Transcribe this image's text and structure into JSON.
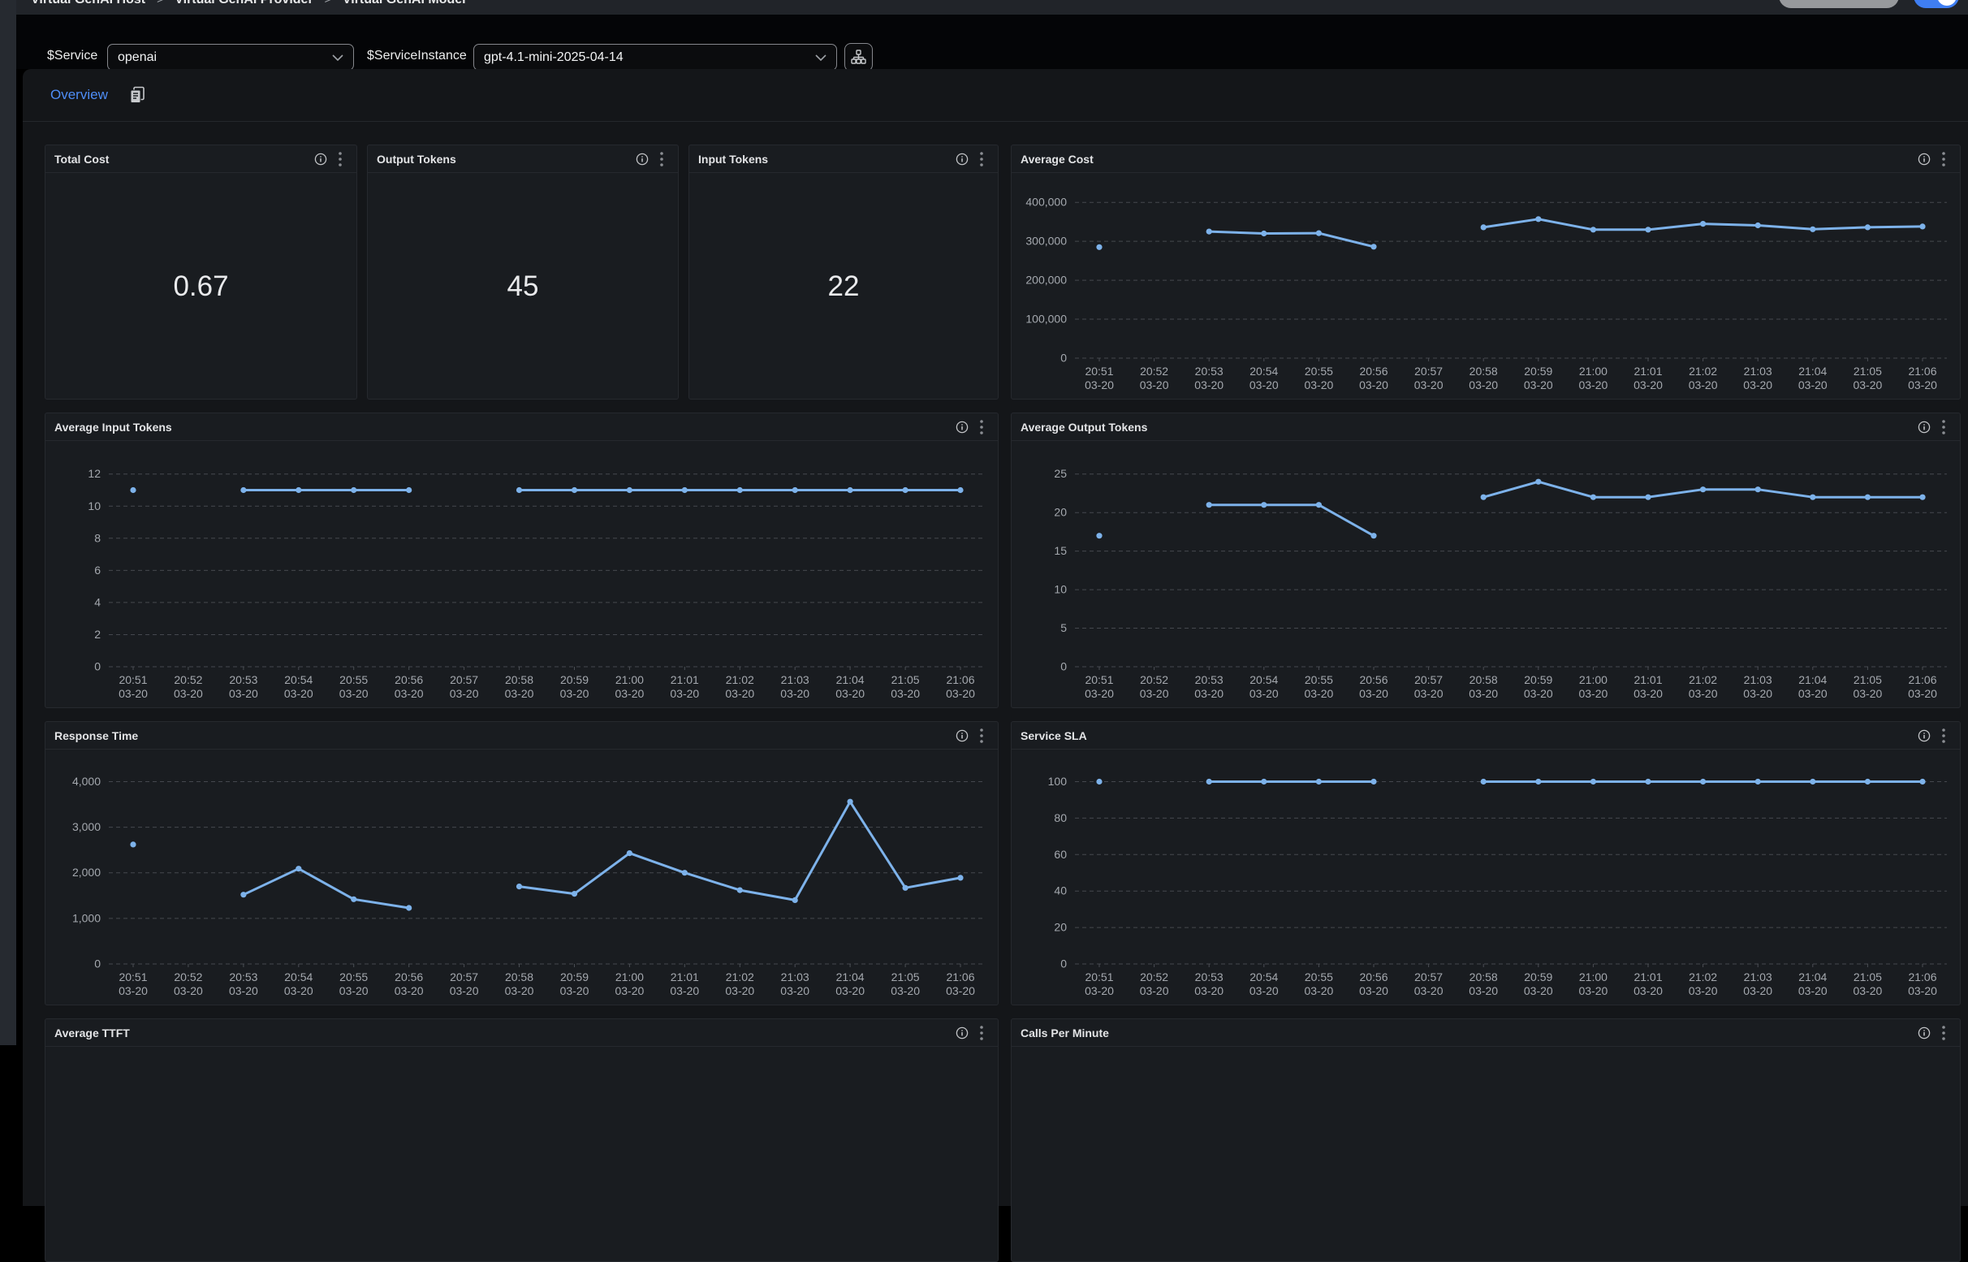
{
  "topbar": {
    "breadcrumb": [
      "Virtual GenAI Host",
      "Virtual GenAI Provider",
      "Virtual GenAI Model"
    ],
    "separator": ">"
  },
  "filters": {
    "service_label": "$Service",
    "service_value": "openai",
    "instance_label": "$ServiceInstance",
    "instance_value": "gpt-4.1-mini-2025-04-14"
  },
  "tabs": {
    "overview": "Overview"
  },
  "stats": [
    {
      "title": "Total Cost",
      "value": "0.67"
    },
    {
      "title": "Output Tokens",
      "value": "45"
    },
    {
      "title": "Input Tokens",
      "value": "22"
    }
  ],
  "time_labels": [
    {
      "t": "20:51",
      "d": "03-20"
    },
    {
      "t": "20:52",
      "d": "03-20"
    },
    {
      "t": "20:53",
      "d": "03-20"
    },
    {
      "t": "20:54",
      "d": "03-20"
    },
    {
      "t": "20:55",
      "d": "03-20"
    },
    {
      "t": "20:56",
      "d": "03-20"
    },
    {
      "t": "20:57",
      "d": "03-20"
    },
    {
      "t": "20:58",
      "d": "03-20"
    },
    {
      "t": "20:59",
      "d": "03-20"
    },
    {
      "t": "21:00",
      "d": "03-20"
    },
    {
      "t": "21:01",
      "d": "03-20"
    },
    {
      "t": "21:02",
      "d": "03-20"
    },
    {
      "t": "21:03",
      "d": "03-20"
    },
    {
      "t": "21:04",
      "d": "03-20"
    },
    {
      "t": "21:05",
      "d": "03-20"
    },
    {
      "t": "21:06",
      "d": "03-20"
    }
  ],
  "chart_data": [
    {
      "id": "avg-cost",
      "type": "line",
      "title": "Average Cost",
      "yticks": [
        0,
        100000,
        200000,
        300000,
        400000
      ],
      "ymax": 440000,
      "values": [
        285000,
        null,
        325000,
        320000,
        321000,
        286000,
        null,
        336000,
        357000,
        330000,
        330000,
        345000,
        341000,
        331000,
        336000,
        338000
      ]
    },
    {
      "id": "avg-input",
      "type": "line",
      "title": "Average Input Tokens",
      "yticks": [
        0,
        2,
        4,
        6,
        8,
        10,
        12
      ],
      "ymax": 13.2,
      "values": [
        11,
        null,
        11,
        11,
        11,
        11,
        null,
        11,
        11,
        11,
        11,
        11,
        11,
        11,
        11,
        11
      ]
    },
    {
      "id": "avg-output",
      "type": "line",
      "title": "Average Output Tokens",
      "yticks": [
        0,
        5,
        10,
        15,
        20,
        25
      ],
      "ymax": 27.5,
      "values": [
        17,
        null,
        21,
        21,
        21,
        17,
        null,
        22,
        24,
        22,
        22,
        23,
        23,
        22,
        22,
        22
      ]
    },
    {
      "id": "resp-time",
      "type": "line",
      "title": "Response Time",
      "yticks": [
        0,
        1000,
        2000,
        3000,
        4000
      ],
      "ymax": 4400,
      "values": [
        2620,
        null,
        1520,
        2090,
        1420,
        1230,
        null,
        1700,
        1540,
        2430,
        2000,
        1620,
        1400,
        3560,
        1670,
        1890
      ]
    },
    {
      "id": "service-sla",
      "type": "line",
      "title": "Service SLA",
      "yticks": [
        0,
        20,
        40,
        60,
        80,
        100
      ],
      "ymax": 110,
      "values": [
        100,
        null,
        100,
        100,
        100,
        100,
        null,
        100,
        100,
        100,
        100,
        100,
        100,
        100,
        100,
        100
      ]
    }
  ],
  "cut_panels": [
    {
      "title": "Average TTFT"
    },
    {
      "title": "Calls Per Minute"
    }
  ],
  "colors": {
    "line": "#7db2ea",
    "grid": "#45484e",
    "axis_text": "#a4a8ae",
    "accent_blue": "#4e8df6"
  }
}
